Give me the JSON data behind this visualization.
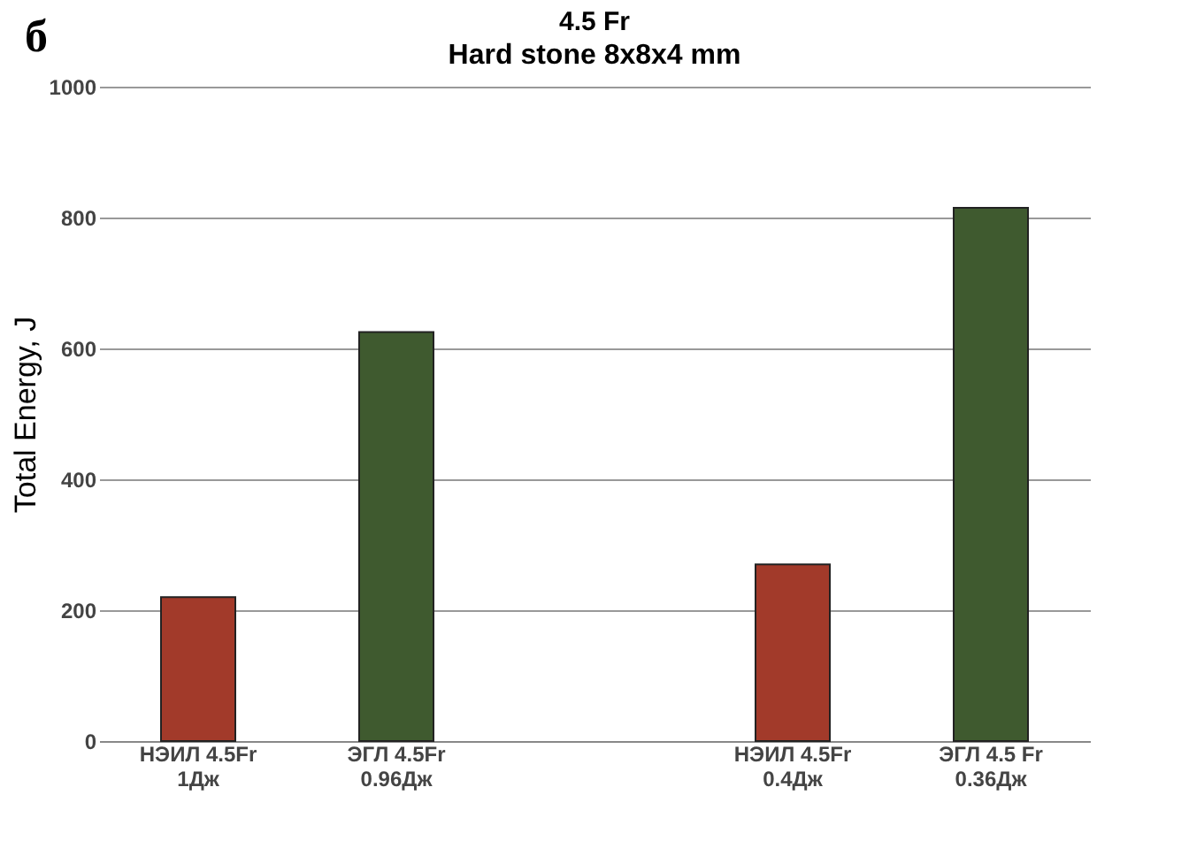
{
  "chart_data": {
    "type": "bar",
    "title": "4.5 Fr",
    "subtitle": "Hard stone 8x8x4 mm",
    "ylabel": "Total Energy, J",
    "annotations": [
      "б"
    ],
    "categories": [
      "НЭИЛ 4.5Fr\n1Дж",
      "ЭГЛ 4.5Fr\n0.96Дж",
      null,
      "НЭИЛ 4.5Fr\n0.4Дж",
      "ЭГЛ 4.5 Fr\n0.36Дж"
    ],
    "values": [
      220,
      625,
      null,
      270,
      815
    ],
    "colors": [
      "#a23a2a",
      "#3f5a2f",
      "#808080",
      "#a23a2a",
      "#3f5a2f"
    ],
    "ylim": [
      0,
      1000
    ],
    "yticks": [
      0,
      200,
      400,
      600,
      800,
      1000
    ],
    "grid": "y"
  }
}
